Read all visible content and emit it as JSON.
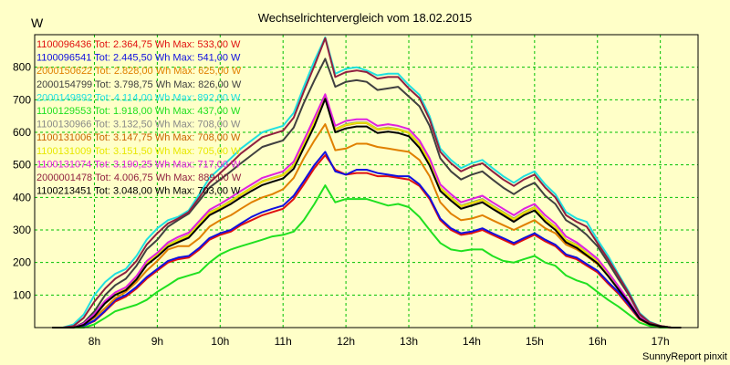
{
  "chart_data": {
    "type": "line",
    "title": "Wechselrichtervergleich vom 18.02.2015",
    "ylabel": "W",
    "footer": "SunnyReport pinxit",
    "x_unit": "hour",
    "xlim": [
      7.05,
      17.6
    ],
    "ylim": [
      0,
      900
    ],
    "yticks": [
      100,
      200,
      300,
      400,
      500,
      600,
      700,
      800
    ],
    "xticks": [
      {
        "value": 8,
        "label": "8h"
      },
      {
        "value": 9,
        "label": "9h"
      },
      {
        "value": 10,
        "label": "10h"
      },
      {
        "value": 11,
        "label": "11h"
      },
      {
        "value": 12,
        "label": "12h"
      },
      {
        "value": 13,
        "label": "13h"
      },
      {
        "value": 14,
        "label": "14h"
      },
      {
        "value": 15,
        "label": "15h"
      },
      {
        "value": 16,
        "label": "16h"
      },
      {
        "value": 17,
        "label": "17h"
      }
    ],
    "grid": true,
    "legend_position": "top-left",
    "x": [
      7.33,
      7.5,
      7.67,
      7.83,
      8.0,
      8.17,
      8.33,
      8.5,
      8.67,
      8.83,
      9.0,
      9.17,
      9.33,
      9.5,
      9.67,
      9.83,
      10.0,
      10.17,
      10.33,
      10.5,
      10.67,
      10.83,
      11.0,
      11.17,
      11.33,
      11.5,
      11.67,
      11.83,
      12.0,
      12.17,
      12.33,
      12.5,
      12.67,
      12.83,
      13.0,
      13.17,
      13.33,
      13.5,
      13.67,
      13.83,
      14.0,
      14.17,
      14.33,
      14.5,
      14.67,
      14.83,
      15.0,
      15.17,
      15.33,
      15.5,
      15.67,
      15.83,
      16.0,
      16.17,
      16.33,
      16.5,
      16.67,
      16.83,
      17.0,
      17.17,
      17.33
    ],
    "series": [
      {
        "name": "1100096436",
        "legend": "1100096436 Tot: 2.364,75 Wh Max: 533,00 W",
        "color": "#e01010",
        "values": [
          0,
          0,
          0,
          5,
          20,
          50,
          80,
          95,
          120,
          150,
          175,
          200,
          210,
          215,
          240,
          270,
          285,
          295,
          315,
          330,
          345,
          355,
          365,
          395,
          440,
          490,
          530,
          485,
          470,
          475,
          475,
          465,
          465,
          460,
          455,
          435,
          395,
          330,
          300,
          285,
          290,
          300,
          285,
          270,
          255,
          270,
          285,
          265,
          250,
          220,
          210,
          190,
          170,
          135,
          105,
          65,
          25,
          10,
          5,
          0,
          0
        ]
      },
      {
        "name": "1100096541",
        "legend": "1100096541 Tot: 2.445,50 Wh Max: 541,00 W",
        "color": "#1010e0",
        "values": [
          0,
          0,
          0,
          5,
          22,
          52,
          85,
          100,
          125,
          155,
          180,
          205,
          215,
          220,
          245,
          275,
          290,
          300,
          320,
          340,
          355,
          365,
          375,
          405,
          450,
          500,
          540,
          480,
          470,
          485,
          485,
          475,
          470,
          465,
          465,
          440,
          400,
          335,
          305,
          290,
          295,
          305,
          290,
          275,
          260,
          275,
          290,
          270,
          255,
          225,
          215,
          195,
          175,
          140,
          110,
          70,
          28,
          12,
          5,
          0,
          0
        ]
      },
      {
        "name": "2000150622",
        "legend": "2000150622 Tot: 2.828,00 Wh Max: 625,00 W",
        "color": "#e08000",
        "values": [
          0,
          0,
          0,
          10,
          30,
          60,
          90,
          110,
          140,
          175,
          205,
          240,
          250,
          250,
          275,
          310,
          330,
          345,
          365,
          385,
          400,
          410,
          425,
          460,
          520,
          575,
          625,
          545,
          550,
          565,
          565,
          555,
          550,
          545,
          540,
          515,
          465,
          385,
          350,
          330,
          335,
          345,
          330,
          315,
          300,
          315,
          330,
          305,
          290,
          255,
          240,
          220,
          195,
          160,
          120,
          80,
          30,
          12,
          5,
          0,
          0
        ]
      },
      {
        "name": "2000154799",
        "legend": "2000154799 Tot: 3.798,75 Wh Max: 826,00 W",
        "color": "#404040",
        "values": [
          0,
          0,
          0,
          15,
          50,
          100,
          130,
          150,
          190,
          240,
          270,
          310,
          330,
          350,
          390,
          430,
          455,
          480,
          505,
          530,
          555,
          565,
          575,
          615,
          690,
          760,
          826,
          740,
          755,
          760,
          755,
          730,
          735,
          740,
          710,
          680,
          620,
          520,
          480,
          455,
          470,
          480,
          455,
          430,
          410,
          430,
          445,
          405,
          380,
          330,
          310,
          285,
          250,
          200,
          150,
          100,
          40,
          15,
          5,
          0,
          0
        ]
      },
      {
        "name": "2000149892",
        "legend": "2000149892 Tot: 4.114,00 Wh Max: 892,00 W",
        "color": "#20e0e0",
        "values": [
          0,
          0,
          10,
          40,
          100,
          140,
          165,
          180,
          220,
          270,
          305,
          330,
          340,
          360,
          410,
          460,
          490,
          520,
          550,
          575,
          600,
          610,
          620,
          660,
          740,
          820,
          892,
          780,
          795,
          800,
          790,
          775,
          780,
          780,
          745,
          715,
          650,
          550,
          515,
          490,
          505,
          515,
          490,
          465,
          445,
          465,
          480,
          440,
          410,
          355,
          335,
          325,
          270,
          220,
          165,
          110,
          45,
          18,
          5,
          0,
          0
        ]
      },
      {
        "name": "1100129553",
        "legend": "1100129553 Tot: 1.918,00 Wh Max: 437,00 W",
        "color": "#20e020",
        "values": [
          0,
          0,
          0,
          0,
          10,
          30,
          50,
          60,
          70,
          85,
          110,
          130,
          150,
          160,
          170,
          200,
          225,
          240,
          250,
          260,
          270,
          280,
          285,
          295,
          330,
          380,
          437,
          385,
          395,
          395,
          395,
          385,
          375,
          380,
          370,
          340,
          300,
          260,
          240,
          235,
          240,
          240,
          220,
          205,
          200,
          210,
          220,
          200,
          190,
          160,
          145,
          135,
          110,
          85,
          65,
          40,
          15,
          5,
          0,
          0,
          0
        ]
      },
      {
        "name": "1100130966",
        "legend": "1100130966 Tot: 3.132,50 Wh Max: 708,00 W",
        "color": "#888888",
        "values": [
          0,
          0,
          0,
          10,
          40,
          80,
          105,
          120,
          155,
          200,
          225,
          255,
          270,
          285,
          320,
          355,
          370,
          390,
          410,
          430,
          450,
          460,
          470,
          500,
          565,
          635,
          708,
          610,
          625,
          630,
          630,
          610,
          615,
          610,
          600,
          565,
          510,
          430,
          400,
          375,
          385,
          395,
          375,
          355,
          335,
          355,
          370,
          335,
          310,
          270,
          255,
          230,
          205,
          165,
          125,
          80,
          30,
          12,
          5,
          0,
          0
        ]
      },
      {
        "name": "1100131006",
        "legend": "1100131006 Tot: 3.147,75 Wh Max: 708,00 W",
        "color": "#c86400",
        "values": [
          0,
          0,
          0,
          8,
          38,
          78,
          103,
          118,
          152,
          198,
          222,
          252,
          268,
          282,
          318,
          352,
          368,
          388,
          408,
          428,
          448,
          458,
          468,
          498,
          562,
          632,
          708,
          608,
          622,
          628,
          628,
          608,
          612,
          608,
          598,
          562,
          508,
          428,
          398,
          372,
          382,
          392,
          372,
          352,
          332,
          352,
          368,
          332,
          308,
          268,
          252,
          228,
          202,
          162,
          122,
          78,
          28,
          10,
          4,
          0,
          0
        ]
      },
      {
        "name": "1100131009",
        "legend": "1100131009 Tot: 3.151,50 Wh Max: 705,00 W",
        "color": "#e8e800",
        "values": [
          0,
          0,
          0,
          9,
          39,
          79,
          104,
          119,
          153,
          199,
          223,
          253,
          269,
          283,
          319,
          353,
          369,
          389,
          409,
          429,
          449,
          459,
          469,
          499,
          563,
          633,
          705,
          609,
          623,
          629,
          629,
          609,
          613,
          609,
          599,
          563,
          509,
          429,
          399,
          373,
          383,
          393,
          373,
          353,
          333,
          353,
          369,
          333,
          309,
          269,
          253,
          229,
          203,
          163,
          123,
          79,
          29,
          11,
          4,
          0,
          0
        ]
      },
      {
        "name": "1100131074",
        "legend": "1100131074 Tot: 3.190,25 Wh Max: 717,00 W",
        "color": "#e020e0",
        "values": [
          0,
          0,
          0,
          12,
          42,
          82,
          108,
          124,
          158,
          204,
          230,
          262,
          278,
          292,
          328,
          362,
          380,
          400,
          420,
          440,
          460,
          470,
          480,
          510,
          575,
          645,
          717,
          620,
          635,
          640,
          640,
          620,
          625,
          620,
          610,
          575,
          520,
          440,
          410,
          385,
          395,
          405,
          385,
          365,
          345,
          365,
          380,
          345,
          320,
          280,
          262,
          238,
          212,
          170,
          128,
          82,
          32,
          12,
          5,
          0,
          0
        ]
      },
      {
        "name": "2000001478",
        "legend": "2000001478 Tot: 4.006,75 Wh Max: 889,00 W",
        "color": "#902040",
        "values": [
          0,
          0,
          5,
          30,
          80,
          120,
          150,
          170,
          205,
          255,
          290,
          320,
          335,
          355,
          400,
          445,
          475,
          505,
          535,
          560,
          585,
          595,
          605,
          645,
          725,
          805,
          889,
          770,
          785,
          790,
          785,
          765,
          770,
          770,
          735,
          705,
          640,
          540,
          505,
          480,
          495,
          505,
          480,
          455,
          435,
          455,
          470,
          430,
          400,
          345,
          325,
          310,
          260,
          210,
          160,
          105,
          42,
          16,
          5,
          0,
          0
        ]
      },
      {
        "name": "1100213451",
        "legend": "1100213451 Tot: 3.048,00 Wh Max: 703,00 W",
        "color": "#000000",
        "values": [
          0,
          0,
          0,
          8,
          35,
          75,
          100,
          115,
          148,
          192,
          218,
          248,
          262,
          276,
          312,
          345,
          362,
          380,
          400,
          420,
          438,
          448,
          458,
          488,
          552,
          620,
          703,
          600,
          612,
          618,
          618,
          598,
          602,
          598,
          588,
          552,
          498,
          420,
          390,
          365,
          375,
          385,
          365,
          345,
          325,
          345,
          360,
          325,
          300,
          262,
          245,
          222,
          198,
          158,
          118,
          76,
          28,
          10,
          4,
          0,
          0
        ]
      }
    ]
  }
}
